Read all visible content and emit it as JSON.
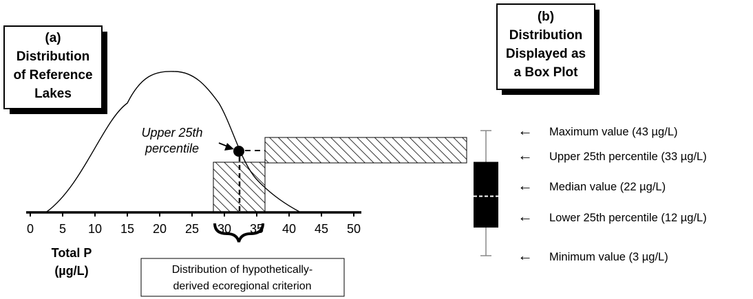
{
  "panel_a": {
    "title_lines": [
      "(a)",
      "Distribution",
      "of Reference",
      "Lakes"
    ]
  },
  "panel_b": {
    "title_lines": [
      "(b)",
      "Distribution",
      "Displayed as",
      "a Box Plot"
    ]
  },
  "axis": {
    "ticks": [
      "0",
      "5",
      "10",
      "15",
      "20",
      "25",
      "30",
      "35",
      "40",
      "45",
      "50"
    ],
    "label_lines": [
      "Total P",
      "(µg/L)"
    ]
  },
  "annotation": {
    "percentile_lines": [
      "Upper 25th",
      "percentile"
    ]
  },
  "criterion_box": {
    "lines": [
      "Distribution of hypothetically-",
      "derived ecoregional criterion"
    ]
  },
  "legend_items": [
    {
      "arrow": "←",
      "label": "Maximum value (43 µg/L)"
    },
    {
      "arrow": "←",
      "label": "Upper 25th percentile (33 µg/L)"
    },
    {
      "arrow": "←",
      "label": "Median value (22 µg/L)"
    },
    {
      "arrow": "←",
      "label": "Lower 25th percentile  (12 µg/L)"
    },
    {
      "arrow": "←",
      "label": "Minimum value (3 µg/L)"
    }
  ],
  "box_plot": {
    "minimum": 3,
    "lower_quartile": 12,
    "median": 22,
    "upper_quartile": 33,
    "maximum": 43
  }
}
